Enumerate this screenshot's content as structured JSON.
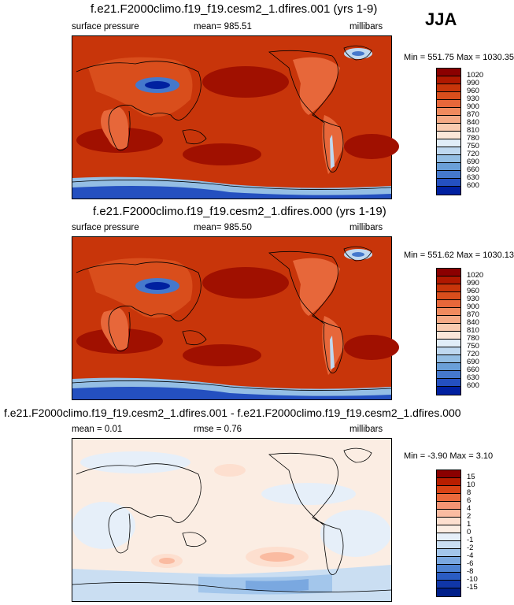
{
  "season": "JJA",
  "colors": {
    "abs_palette": [
      "#8B0000",
      "#B01800",
      "#C8350A",
      "#D94E1C",
      "#E7673A",
      "#F08A5E",
      "#F5AA86",
      "#F9CBB0",
      "#FBE6D8",
      "#E1EDF8",
      "#BFD8F0",
      "#94BEE4",
      "#6A9FD8",
      "#4578CC",
      "#2450C0",
      "#0020A0"
    ],
    "diff_palette": [
      "#8B0000",
      "#B81E00",
      "#D94315",
      "#EB6A3C",
      "#F59473",
      "#FABBA1",
      "#FDDFCF",
      "#FBEDE3",
      "#E6EFF9",
      "#CADEF2",
      "#A3C6EB",
      "#7AA8E0",
      "#4E83D2",
      "#2A5CC3",
      "#1036A8",
      "#001F8A"
    ]
  },
  "panels": [
    {
      "title": "f.e21.F2000climo.f19_f19.cesm2_1.dfires.001 (yrs 1-9)",
      "variable": "surface pressure",
      "stat_text": "mean= 985.51",
      "units": "millibars",
      "minmax": "Min = 551.75 Max = 1030.35",
      "colorbar_labels": [
        "1020",
        "990",
        "960",
        "930",
        "900",
        "870",
        "840",
        "810",
        "780",
        "750",
        "720",
        "690",
        "660",
        "630",
        "600"
      ]
    },
    {
      "title": "f.e21.F2000climo.f19_f19.cesm2_1.dfires.000 (yrs 1-19)",
      "variable": "surface pressure",
      "stat_text": "mean= 985.50",
      "units": "millibars",
      "minmax": "Min = 551.62 Max = 1030.13",
      "colorbar_labels": [
        "1020",
        "990",
        "960",
        "930",
        "900",
        "870",
        "840",
        "810",
        "780",
        "750",
        "720",
        "690",
        "660",
        "630",
        "600"
      ]
    },
    {
      "title": "f.e21.F2000climo.f19_f19.cesm2_1.dfires.001 - f.e21.F2000climo.f19_f19.cesm2_1.dfires.000",
      "mean_text": "mean =   0.01",
      "rmse_text": "rmse =   0.76",
      "units": "millibars",
      "minmax": "Min =  -3.90 Max =   3.10",
      "colorbar_labels": [
        "15",
        "10",
        "8",
        "6",
        "4",
        "2",
        "1",
        "0",
        "-1",
        "-2",
        "-4",
        "-6",
        "-8",
        "-10",
        "-15"
      ]
    }
  ]
}
